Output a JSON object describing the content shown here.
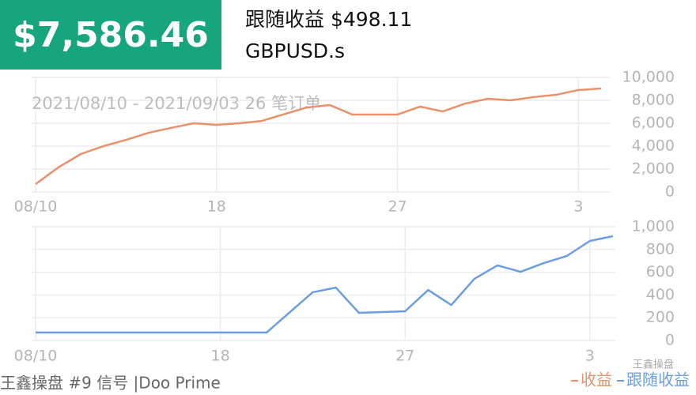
{
  "header": {
    "total": "$7,586.46",
    "follow": "跟随收益 $498.11",
    "symbol": "GBPUSD.s"
  },
  "chart_data": [
    {
      "type": "line",
      "subtitle": "2021/08/10 - 2021/09/03 26 笔订单",
      "categories": [
        "08/10",
        null,
        null,
        null,
        null,
        null,
        null,
        null,
        "18",
        null,
        null,
        null,
        null,
        null,
        null,
        null,
        "27",
        null,
        null,
        null,
        null,
        null,
        null,
        null,
        "3",
        null
      ],
      "series": [
        {
          "name": "收益",
          "color": "#e8916a",
          "values": [
            690,
            2140,
            3310,
            4000,
            4550,
            5170,
            5600,
            6000,
            5860,
            6000,
            6200,
            6800,
            7380,
            7590,
            6760,
            6760,
            6760,
            7450,
            7030,
            7720,
            8140,
            8000,
            8280,
            8480,
            8900,
            9030
          ]
        }
      ],
      "ylim": [
        0,
        10000
      ],
      "yticks": [
        0,
        {
          "value": 2000,
          "label": "2,000"
        },
        {
          "value": 4000,
          "label": "4,000"
        },
        {
          "value": 6000,
          "label": "6,000"
        },
        {
          "value": 8000,
          "label": "8,000"
        },
        {
          "value": 10000,
          "label": "10,000"
        }
      ],
      "grid": true
    },
    {
      "type": "line",
      "categories": [
        "08/10",
        null,
        null,
        null,
        null,
        null,
        null,
        null,
        "18",
        null,
        null,
        null,
        null,
        null,
        null,
        null,
        "27",
        null,
        null,
        null,
        null,
        null,
        null,
        null,
        "3",
        null
      ],
      "series": [
        {
          "name": "跟随收益",
          "color": "#6a9ee0",
          "values": [
            70,
            70,
            70,
            70,
            70,
            70,
            70,
            70,
            70,
            70,
            70,
            247,
            424,
            465,
            243,
            250,
            257,
            444,
            312,
            542,
            660,
            604,
            680,
            743,
            875,
            917
          ]
        }
      ],
      "ylim": [
        0,
        1000
      ],
      "yticks": [
        0,
        200,
        400,
        600,
        800,
        {
          "value": 1000,
          "label": "1,000"
        }
      ],
      "grid": true
    }
  ],
  "footer": {
    "signal": "王鑫操盘 #9 信号 |Doo Prime",
    "watermark": "王鑫操盘"
  }
}
